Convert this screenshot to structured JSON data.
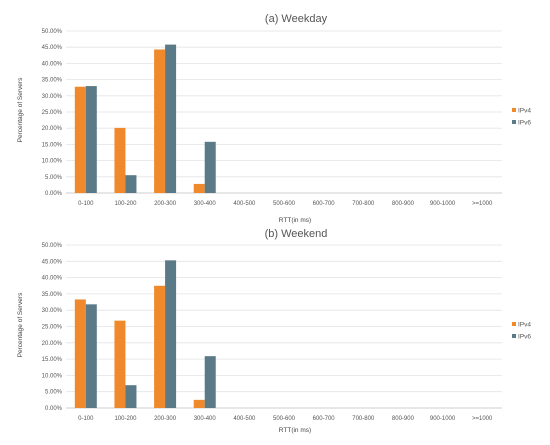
{
  "colors": {
    "ipv4": "#F0892B",
    "ipv6": "#5A7A88",
    "grid": "#E3E3E3",
    "axis": "#BFBFBF"
  },
  "chart_data": [
    {
      "type": "bar",
      "title": "(a) Weekday",
      "xlabel": "RTT(in ms)",
      "ylabel": "Percentage of Servers",
      "ylim": [
        0,
        50
      ],
      "yticks": [
        "0.00%",
        "5.00%",
        "10.00%",
        "15.00%",
        "20.00%",
        "25.00%",
        "30.00%",
        "35.00%",
        "40.00%",
        "45.00%",
        "50.00%"
      ],
      "categories": [
        "0-100",
        "100-200",
        "200-300",
        "300-400",
        "400-500",
        "500-600",
        "600-700",
        "700-800",
        "800-900",
        "900-1000",
        ">=1000"
      ],
      "series": [
        {
          "name": "IPv4",
          "values": [
            32.8,
            20.1,
            44.3,
            2.8,
            0,
            0,
            0,
            0,
            0,
            0,
            0
          ]
        },
        {
          "name": "IPv6",
          "values": [
            33.0,
            5.5,
            45.8,
            15.8,
            0,
            0,
            0,
            0,
            0,
            0,
            0
          ]
        }
      ],
      "grid": true,
      "legend_position": "right"
    },
    {
      "type": "bar",
      "title": "(b) Weekend",
      "xlabel": "RTT(in ms)",
      "ylabel": "Percentage of Servers",
      "ylim": [
        0,
        50
      ],
      "yticks": [
        "0.00%",
        "5.00%",
        "10.00%",
        "15.00%",
        "20.00%",
        "25.00%",
        "30.00%",
        "35.00%",
        "40.00%",
        "45.00%",
        "50.00%"
      ],
      "categories": [
        "0-100",
        "100-200",
        "200-300",
        "300-400",
        "400-500",
        "500-600",
        "600-700",
        "700-800",
        "800-900",
        "900-1000",
        ">=1000"
      ],
      "series": [
        {
          "name": "IPv4",
          "values": [
            33.3,
            26.8,
            37.5,
            2.5,
            0,
            0,
            0,
            0,
            0,
            0,
            0
          ]
        },
        {
          "name": "IPv6",
          "values": [
            31.8,
            7.0,
            45.3,
            15.9,
            0,
            0,
            0,
            0,
            0,
            0,
            0
          ]
        }
      ],
      "grid": true,
      "legend_position": "right"
    }
  ]
}
